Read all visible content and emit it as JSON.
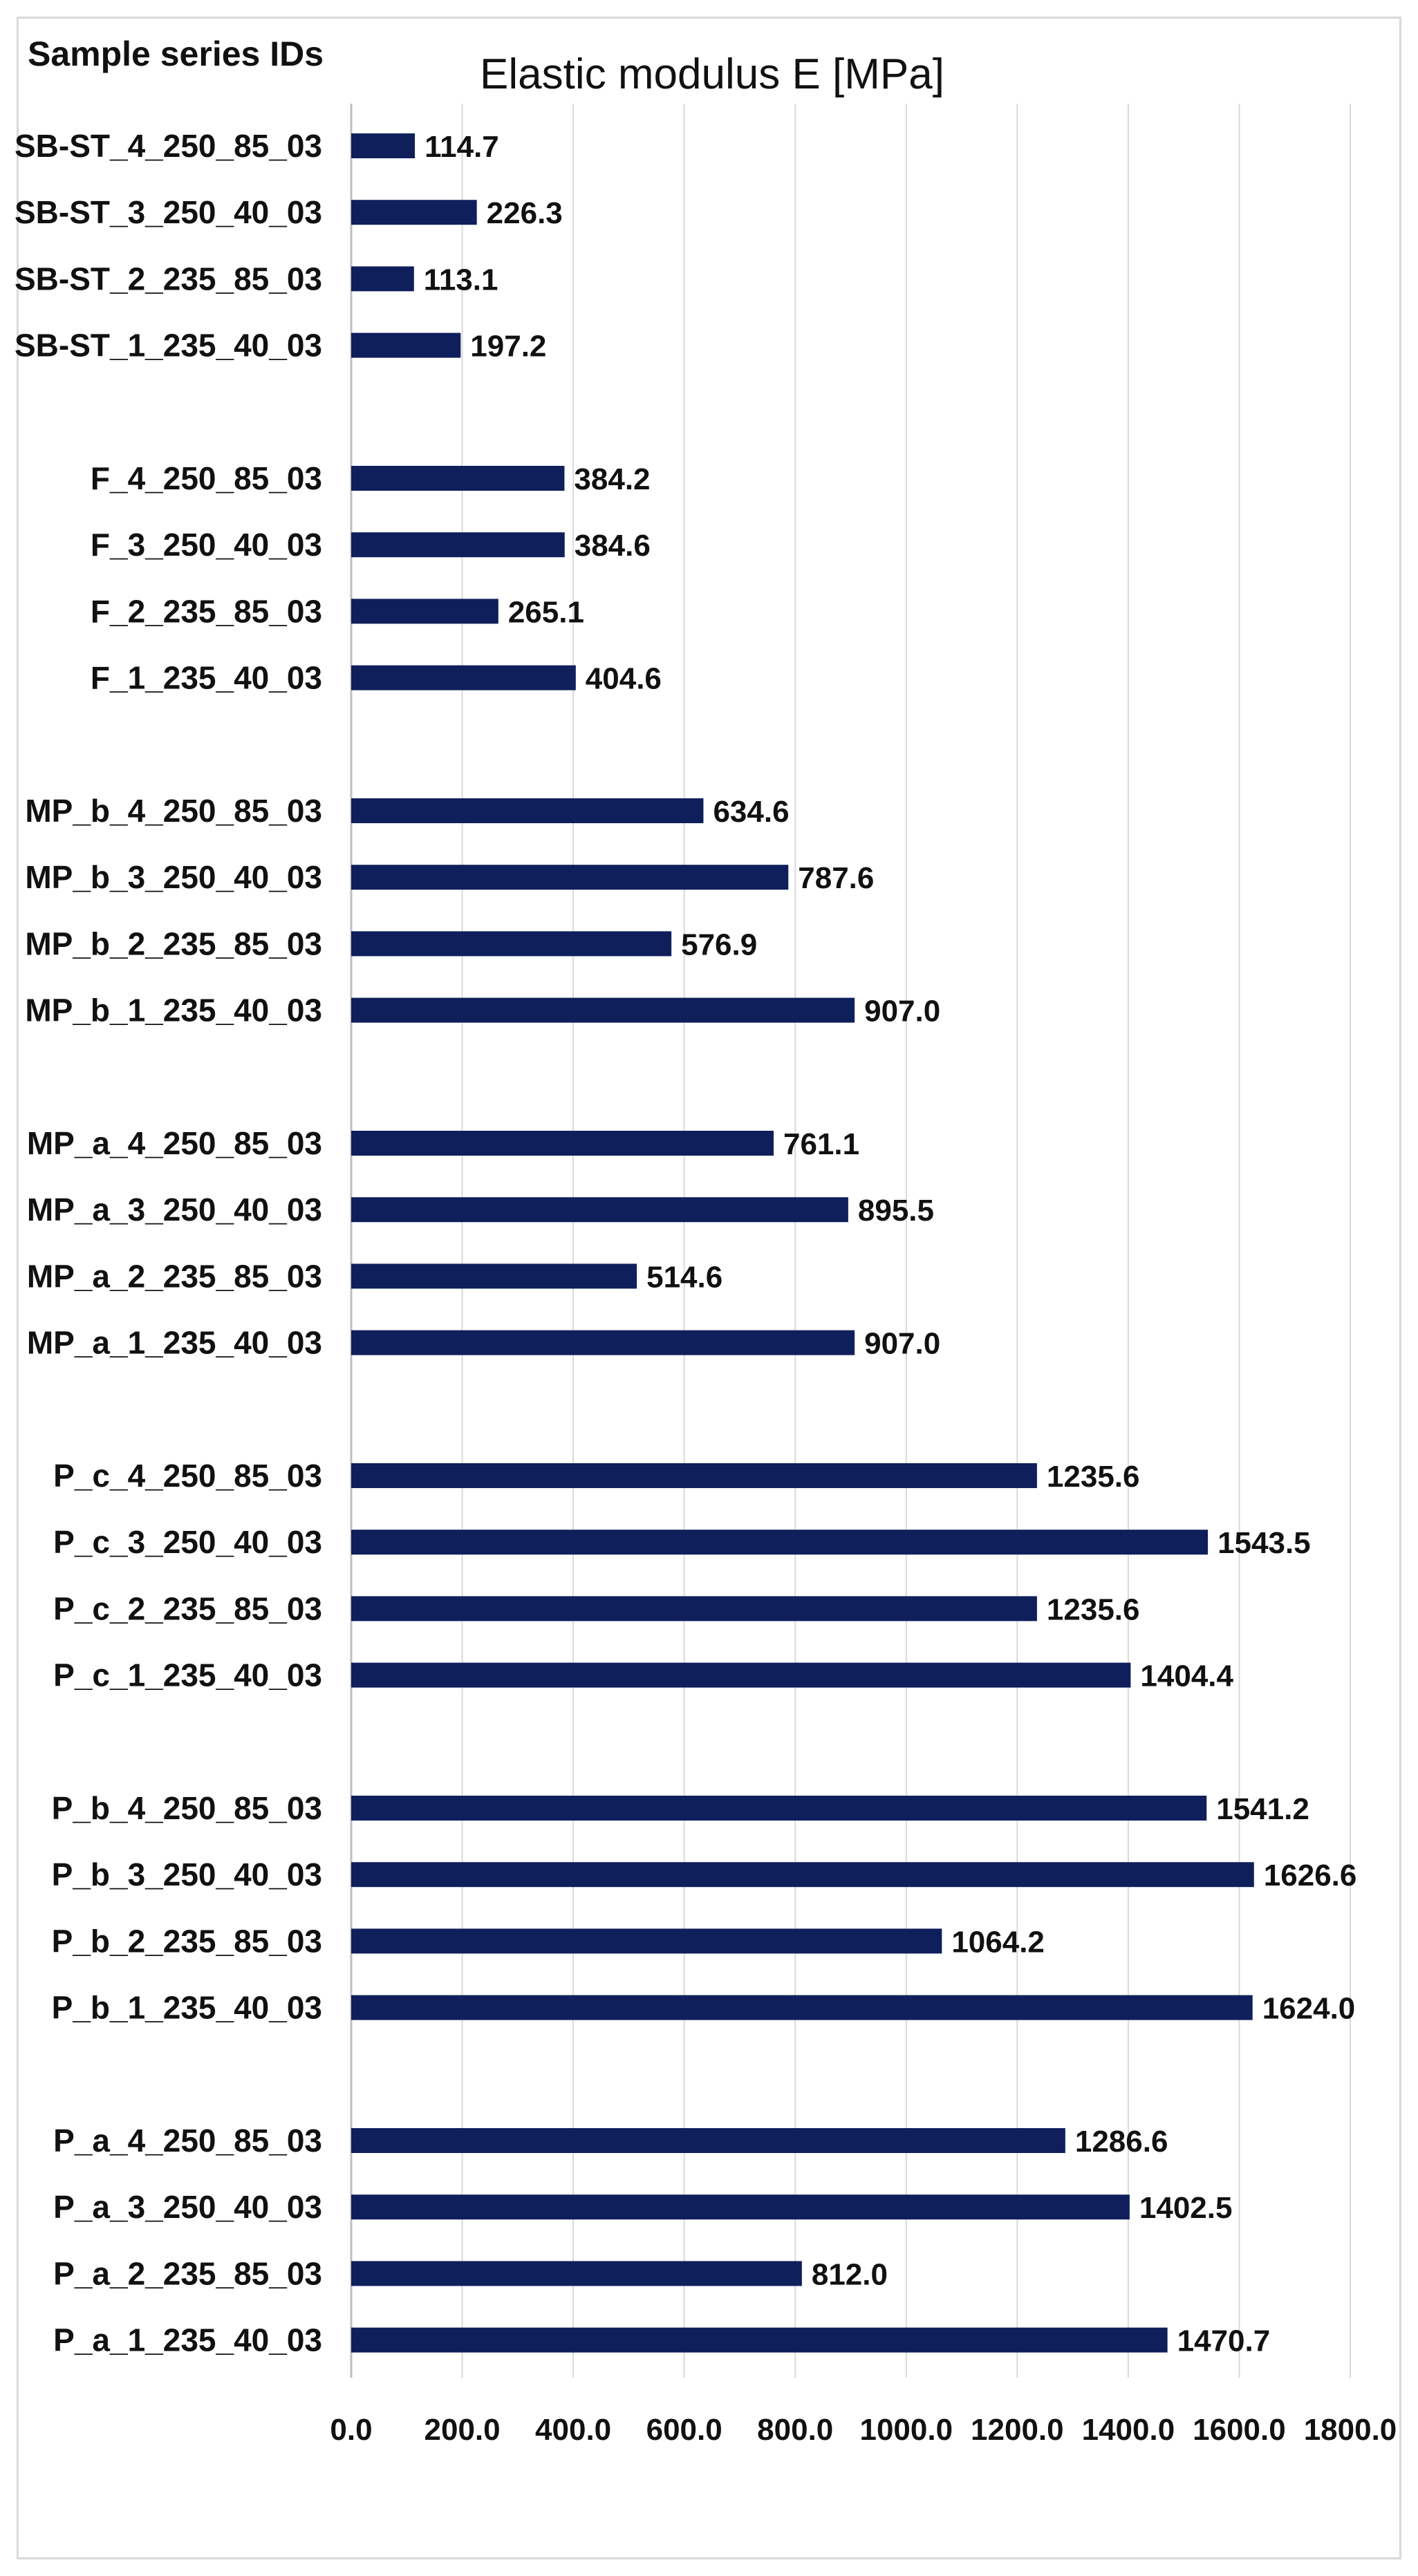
{
  "chart_data": {
    "type": "bar",
    "orientation": "horizontal",
    "title": "Elastic modulus E [MPa]",
    "ylabel": "Sample series IDs",
    "xlabel": "",
    "xlim": [
      0,
      1800
    ],
    "xticks": [
      "0.0",
      "200.0",
      "400.0",
      "600.0",
      "800.0",
      "1000.0",
      "1200.0",
      "1400.0",
      "1600.0",
      "1800.0"
    ],
    "grid": true,
    "bar_color": "#0f1f5c",
    "groups": [
      {
        "items": [
          {
            "label": "SB-ST_4_250_85_03",
            "value": 114.7,
            "display": "114.7"
          },
          {
            "label": "SB-ST_3_250_40_03",
            "value": 226.3,
            "display": "226.3"
          },
          {
            "label": "SB-ST_2_235_85_03",
            "value": 113.1,
            "display": "113.1"
          },
          {
            "label": "SB-ST_1_235_40_03",
            "value": 197.2,
            "display": "197.2"
          }
        ]
      },
      {
        "items": [
          {
            "label": "F_4_250_85_03",
            "value": 384.2,
            "display": "384.2"
          },
          {
            "label": "F_3_250_40_03",
            "value": 384.6,
            "display": "384.6"
          },
          {
            "label": "F_2_235_85_03",
            "value": 265.1,
            "display": "265.1"
          },
          {
            "label": "F_1_235_40_03",
            "value": 404.6,
            "display": "404.6"
          }
        ]
      },
      {
        "items": [
          {
            "label": "MP_b_4_250_85_03",
            "value": 634.6,
            "display": "634.6"
          },
          {
            "label": "MP_b_3_250_40_03",
            "value": 787.6,
            "display": "787.6"
          },
          {
            "label": "MP_b_2_235_85_03",
            "value": 576.9,
            "display": "576.9"
          },
          {
            "label": "MP_b_1_235_40_03",
            "value": 907.0,
            "display": "907.0"
          }
        ]
      },
      {
        "items": [
          {
            "label": "MP_a_4_250_85_03",
            "value": 761.1,
            "display": "761.1"
          },
          {
            "label": "MP_a_3_250_40_03",
            "value": 895.5,
            "display": "895.5"
          },
          {
            "label": "MP_a_2_235_85_03",
            "value": 514.6,
            "display": "514.6"
          },
          {
            "label": "MP_a_1_235_40_03",
            "value": 907.0,
            "display": "907.0"
          }
        ]
      },
      {
        "items": [
          {
            "label": "P_c_4_250_85_03",
            "value": 1235.6,
            "display": "1235.6"
          },
          {
            "label": "P_c_3_250_40_03",
            "value": 1543.5,
            "display": "1543.5"
          },
          {
            "label": "P_c_2_235_85_03",
            "value": 1235.6,
            "display": "1235.6"
          },
          {
            "label": "P_c_1_235_40_03",
            "value": 1404.4,
            "display": "1404.4"
          }
        ]
      },
      {
        "items": [
          {
            "label": "P_b_4_250_85_03",
            "value": 1541.2,
            "display": "1541.2"
          },
          {
            "label": "P_b_3_250_40_03",
            "value": 1626.6,
            "display": "1626.6"
          },
          {
            "label": "P_b_2_235_85_03",
            "value": 1064.2,
            "display": "1064.2"
          },
          {
            "label": "P_b_1_235_40_03",
            "value": 1624.0,
            "display": "1624.0"
          }
        ]
      },
      {
        "items": [
          {
            "label": "P_a_4_250_85_03",
            "value": 1286.6,
            "display": "1286.6"
          },
          {
            "label": "P_a_3_250_40_03",
            "value": 1402.5,
            "display": "1402.5"
          },
          {
            "label": "P_a_2_235_85_03",
            "value": 812.0,
            "display": "812.0"
          },
          {
            "label": "P_a_1_235_40_03",
            "value": 1470.7,
            "display": "1470.7"
          }
        ]
      }
    ]
  }
}
